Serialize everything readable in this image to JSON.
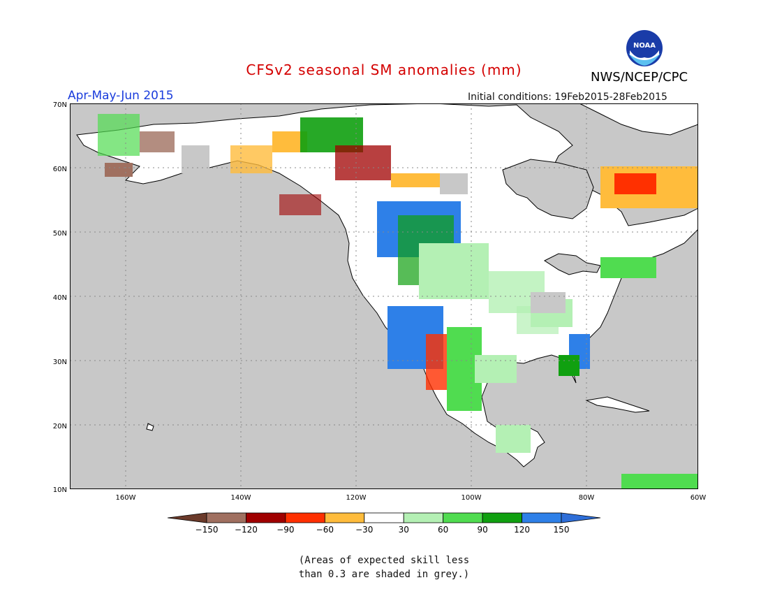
{
  "title": "CFSv2 seasonal SM anomalies (mm)",
  "period": "Apr-May-Jun 2015",
  "initial_conditions": "Initial conditions: 19Feb2015-28Feb2015",
  "agency": "NWS/NCEP/CPC",
  "logo_text": "NOAA",
  "lat_labels": [
    "70N",
    "60N",
    "50N",
    "40N",
    "30N",
    "20N",
    "10N"
  ],
  "lon_labels": [
    "160W",
    "140W",
    "120W",
    "100W",
    "80W",
    "60W"
  ],
  "legend": {
    "colors": [
      "#6b3a2a",
      "#a07060",
      "#a00000",
      "#ff3000",
      "#ffbc3c",
      "#ffffff",
      "#b4f0b4",
      "#50dc50",
      "#10a010",
      "#2e80e8",
      "#2e6ed8"
    ],
    "labels": [
      "-150",
      "-120",
      "-90",
      "-60",
      "-30",
      "30",
      "60",
      "90",
      "120",
      "150"
    ]
  },
  "note_line1": "(Areas of expected skill less",
  "note_line2": "than 0.3 are shaded in grey.)",
  "colors": {
    "ocean": "#c8c8c8",
    "land": "#ffffff",
    "title": "#d40000",
    "period": "#1a3cdc"
  }
}
